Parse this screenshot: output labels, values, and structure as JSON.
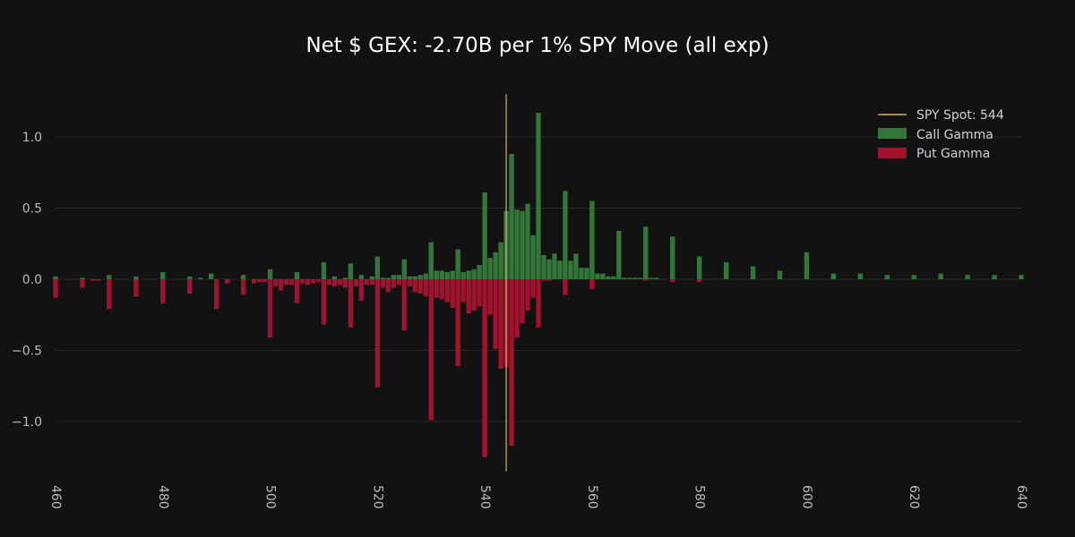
{
  "chart_data": {
    "type": "bar",
    "title": "Net $ GEX: -2.70B per 1% SPY Move (all exp)",
    "xlabel": "",
    "ylabel": "",
    "xlim": [
      460,
      640
    ],
    "ylim": [
      -1.35,
      1.3
    ],
    "x_ticks": [
      "460",
      "480",
      "500",
      "520",
      "540",
      "560",
      "580",
      "600",
      "620",
      "640"
    ],
    "y_ticks": [
      "1.0",
      "0.5",
      "0.0",
      "−0.5",
      "−1.0"
    ],
    "y_tick_values": [
      1.0,
      0.5,
      0.0,
      -0.5,
      -1.0
    ],
    "grid": "horizontal",
    "legend_position": "top-right",
    "colors": {
      "background": "#121212",
      "call": "#34753a",
      "put": "#a4112d",
      "spot": "#c9b45b",
      "grid": "#262626"
    },
    "spot": {
      "label": "SPY Spot: 544",
      "value": 544
    },
    "series": [
      {
        "name": "Call Gamma",
        "points": [
          [
            460,
            0.02
          ],
          [
            465,
            0.01
          ],
          [
            470,
            0.03
          ],
          [
            475,
            0.02
          ],
          [
            480,
            0.05
          ],
          [
            485,
            0.02
          ],
          [
            487,
            0.01
          ],
          [
            489,
            0.04
          ],
          [
            495,
            0.03
          ],
          [
            500,
            0.07
          ],
          [
            505,
            0.05
          ],
          [
            510,
            0.12
          ],
          [
            512,
            0.02
          ],
          [
            514,
            0.01
          ],
          [
            515,
            0.11
          ],
          [
            517,
            0.03
          ],
          [
            519,
            0.02
          ],
          [
            520,
            0.16
          ],
          [
            521,
            0.01
          ],
          [
            522,
            0.01
          ],
          [
            523,
            0.03
          ],
          [
            524,
            0.03
          ],
          [
            525,
            0.14
          ],
          [
            526,
            0.02
          ],
          [
            527,
            0.02
          ],
          [
            528,
            0.03
          ],
          [
            529,
            0.04
          ],
          [
            530,
            0.26
          ],
          [
            531,
            0.06
          ],
          [
            532,
            0.06
          ],
          [
            533,
            0.05
          ],
          [
            534,
            0.06
          ],
          [
            535,
            0.21
          ],
          [
            536,
            0.05
          ],
          [
            537,
            0.06
          ],
          [
            538,
            0.07
          ],
          [
            539,
            0.1
          ],
          [
            540,
            0.61
          ],
          [
            541,
            0.15
          ],
          [
            542,
            0.19
          ],
          [
            543,
            0.26
          ],
          [
            544,
            0.48
          ],
          [
            545,
            0.88
          ],
          [
            546,
            0.49
          ],
          [
            547,
            0.48
          ],
          [
            548,
            0.53
          ],
          [
            549,
            0.31
          ],
          [
            550,
            1.17
          ],
          [
            551,
            0.17
          ],
          [
            552,
            0.14
          ],
          [
            553,
            0.18
          ],
          [
            554,
            0.13
          ],
          [
            555,
            0.62
          ],
          [
            556,
            0.13
          ],
          [
            557,
            0.18
          ],
          [
            558,
            0.08
          ],
          [
            559,
            0.08
          ],
          [
            560,
            0.55
          ],
          [
            561,
            0.04
          ],
          [
            562,
            0.04
          ],
          [
            563,
            0.02
          ],
          [
            564,
            0.02
          ],
          [
            565,
            0.34
          ],
          [
            566,
            0.01
          ],
          [
            567,
            0.01
          ],
          [
            568,
            0.01
          ],
          [
            569,
            0.01
          ],
          [
            570,
            0.37
          ],
          [
            571,
            0.01
          ],
          [
            572,
            0.01
          ],
          [
            575,
            0.3
          ],
          [
            580,
            0.16
          ],
          [
            585,
            0.12
          ],
          [
            590,
            0.09
          ],
          [
            595,
            0.06
          ],
          [
            600,
            0.19
          ],
          [
            605,
            0.04
          ],
          [
            610,
            0.04
          ],
          [
            615,
            0.03
          ],
          [
            620,
            0.03
          ],
          [
            625,
            0.04
          ],
          [
            630,
            0.03
          ],
          [
            635,
            0.03
          ],
          [
            640,
            0.03
          ]
        ]
      },
      {
        "name": "Put Gamma",
        "points": [
          [
            460,
            -0.13
          ],
          [
            465,
            -0.06
          ],
          [
            467,
            -0.01
          ],
          [
            468,
            -0.01
          ],
          [
            470,
            -0.21
          ],
          [
            475,
            -0.12
          ],
          [
            480,
            -0.17
          ],
          [
            485,
            -0.1
          ],
          [
            490,
            -0.21
          ],
          [
            492,
            -0.03
          ],
          [
            495,
            -0.11
          ],
          [
            497,
            -0.03
          ],
          [
            498,
            -0.02
          ],
          [
            499,
            -0.02
          ],
          [
            500,
            -0.41
          ],
          [
            501,
            -0.05
          ],
          [
            502,
            -0.08
          ],
          [
            503,
            -0.04
          ],
          [
            504,
            -0.04
          ],
          [
            505,
            -0.17
          ],
          [
            506,
            -0.03
          ],
          [
            507,
            -0.04
          ],
          [
            508,
            -0.03
          ],
          [
            509,
            -0.02
          ],
          [
            510,
            -0.32
          ],
          [
            511,
            -0.04
          ],
          [
            512,
            -0.05
          ],
          [
            513,
            -0.04
          ],
          [
            514,
            -0.06
          ],
          [
            515,
            -0.34
          ],
          [
            516,
            -0.05
          ],
          [
            517,
            -0.15
          ],
          [
            518,
            -0.04
          ],
          [
            519,
            -0.04
          ],
          [
            520,
            -0.76
          ],
          [
            521,
            -0.06
          ],
          [
            522,
            -0.09
          ],
          [
            523,
            -0.06
          ],
          [
            524,
            -0.04
          ],
          [
            525,
            -0.36
          ],
          [
            526,
            -0.05
          ],
          [
            527,
            -0.09
          ],
          [
            528,
            -0.1
          ],
          [
            529,
            -0.12
          ],
          [
            530,
            -0.99
          ],
          [
            531,
            -0.13
          ],
          [
            532,
            -0.14
          ],
          [
            533,
            -0.16
          ],
          [
            534,
            -0.2
          ],
          [
            535,
            -0.61
          ],
          [
            536,
            -0.16
          ],
          [
            537,
            -0.24
          ],
          [
            538,
            -0.22
          ],
          [
            539,
            -0.19
          ],
          [
            540,
            -1.25
          ],
          [
            541,
            -0.25
          ],
          [
            542,
            -0.49
          ],
          [
            543,
            -0.63
          ],
          [
            544,
            -0.62
          ],
          [
            545,
            -1.17
          ],
          [
            546,
            -0.41
          ],
          [
            547,
            -0.31
          ],
          [
            548,
            -0.22
          ],
          [
            549,
            -0.13
          ],
          [
            550,
            -0.34
          ],
          [
            551,
            -0.01
          ],
          [
            552,
            -0.01
          ],
          [
            555,
            -0.11
          ],
          [
            560,
            -0.07
          ],
          [
            570,
            -0.01
          ],
          [
            575,
            -0.02
          ],
          [
            580,
            -0.02
          ]
        ]
      }
    ]
  }
}
